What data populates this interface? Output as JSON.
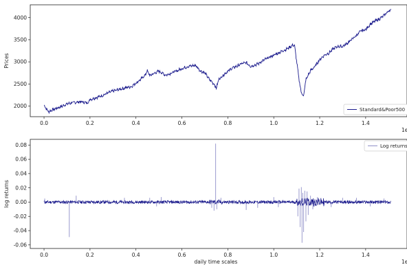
{
  "chart_data": [
    {
      "type": "line",
      "title": "",
      "xlabel": "",
      "ylabel": "Prices",
      "x_offset_label": "1e",
      "xlim": [
        -0.06,
        1.58
      ],
      "ylim": [
        1760,
        4290
      ],
      "xticks": [
        0.0,
        0.2,
        0.4,
        0.6,
        0.8,
        1.0,
        1.2,
        1.4
      ],
      "xtick_labels": [
        "0.0",
        "0.2",
        "0.4",
        "0.6",
        "0.8",
        "1.0",
        "1.2",
        "1.4"
      ],
      "yticks": [
        2000,
        2500,
        3000,
        3500,
        4000
      ],
      "ytick_labels": [
        "2000",
        "2500",
        "3000",
        "3500",
        "4000"
      ],
      "grid": false,
      "legend_position": "lower-right",
      "series": [
        {
          "name": "Standard&Poor500",
          "color": "#1a1a8c",
          "x": [
            0.0,
            0.01,
            0.02,
            0.03,
            0.05,
            0.08,
            0.1,
            0.13,
            0.16,
            0.19,
            0.2,
            0.22,
            0.25,
            0.28,
            0.3,
            0.33,
            0.36,
            0.38,
            0.4,
            0.42,
            0.44,
            0.45,
            0.46,
            0.48,
            0.5,
            0.53,
            0.55,
            0.58,
            0.6,
            0.63,
            0.66,
            0.68,
            0.7,
            0.72,
            0.74,
            0.75,
            0.76,
            0.78,
            0.8,
            0.82,
            0.84,
            0.86,
            0.88,
            0.9,
            0.93,
            0.96,
            0.98,
            1.0,
            1.02,
            1.04,
            1.06,
            1.08,
            1.09,
            1.1,
            1.11,
            1.12,
            1.13,
            1.14,
            1.16,
            1.18,
            1.2,
            1.22,
            1.24,
            1.26,
            1.28,
            1.3,
            1.32,
            1.34,
            1.36,
            1.38,
            1.4,
            1.42,
            1.44,
            1.46,
            1.48,
            1.5,
            1.51
          ],
          "values": [
            2020,
            1940,
            1870,
            1900,
            1940,
            2000,
            2050,
            2080,
            2100,
            2070,
            2150,
            2180,
            2230,
            2300,
            2340,
            2380,
            2420,
            2440,
            2520,
            2600,
            2700,
            2800,
            2690,
            2740,
            2790,
            2700,
            2740,
            2800,
            2850,
            2900,
            2920,
            2800,
            2750,
            2600,
            2500,
            2400,
            2600,
            2700,
            2790,
            2860,
            2900,
            2960,
            2980,
            2900,
            2950,
            3050,
            3100,
            3150,
            3200,
            3250,
            3300,
            3370,
            3380,
            3000,
            2600,
            2300,
            2230,
            2600,
            2800,
            2900,
            3050,
            3150,
            3200,
            3300,
            3350,
            3350,
            3420,
            3510,
            3600,
            3700,
            3730,
            3850,
            3920,
            3970,
            4050,
            4150,
            4180
          ]
        }
      ]
    },
    {
      "type": "line",
      "title": "",
      "xlabel": "daily time scales",
      "ylabel": "log returns",
      "x_offset_label": "1e",
      "xlim": [
        -0.06,
        1.58
      ],
      "ylim": [
        -0.065,
        0.088
      ],
      "xticks": [
        0.0,
        0.2,
        0.4,
        0.6,
        0.8,
        1.0,
        1.2,
        1.4
      ],
      "xtick_labels": [
        "0.0",
        "0.2",
        "0.4",
        "0.6",
        "0.8",
        "1.0",
        "1.2",
        "1.4"
      ],
      "yticks": [
        -0.06,
        -0.04,
        -0.02,
        0.0,
        0.02,
        0.04,
        0.06,
        0.08
      ],
      "ytick_labels": [
        "-0.06",
        "-0.04",
        "-0.02",
        "0.00",
        "0.02",
        "0.04",
        "0.06",
        "0.08"
      ],
      "grid": false,
      "legend_position": "upper-right",
      "series": [
        {
          "name": "Log returns",
          "color": "#1a1a8c",
          "spike_color": "#8f8fc8",
          "x_range": [
            0.0,
            1.51
          ],
          "baseline_amplitude": 0.0022,
          "spikes": [
            {
              "x": 0.003,
              "value": 0.005
            },
            {
              "x": 0.11,
              "value": -0.049
            },
            {
              "x": 0.14,
              "value": 0.009
            },
            {
              "x": 0.35,
              "value": 0.006
            },
            {
              "x": 0.46,
              "value": 0.006
            },
            {
              "x": 0.49,
              "value": -0.006
            },
            {
              "x": 0.51,
              "value": 0.007
            },
            {
              "x": 0.73,
              "value": -0.008
            },
            {
              "x": 0.74,
              "value": -0.012
            },
            {
              "x": 0.747,
              "value": 0.082
            },
            {
              "x": 0.752,
              "value": -0.01
            },
            {
              "x": 0.77,
              "value": 0.006
            },
            {
              "x": 0.88,
              "value": -0.011
            },
            {
              "x": 0.93,
              "value": -0.008
            },
            {
              "x": 1.0,
              "value": 0.007
            },
            {
              "x": 1.02,
              "value": -0.007
            },
            {
              "x": 1.105,
              "value": -0.02
            },
            {
              "x": 1.11,
              "value": 0.019
            },
            {
              "x": 1.115,
              "value": -0.035
            },
            {
              "x": 1.12,
              "value": 0.021
            },
            {
              "x": 1.123,
              "value": -0.057
            },
            {
              "x": 1.126,
              "value": 0.013
            },
            {
              "x": 1.13,
              "value": -0.042
            },
            {
              "x": 1.135,
              "value": 0.016
            },
            {
              "x": 1.14,
              "value": -0.027
            },
            {
              "x": 1.145,
              "value": 0.015
            },
            {
              "x": 1.15,
              "value": -0.018
            },
            {
              "x": 1.16,
              "value": 0.009
            },
            {
              "x": 1.17,
              "value": -0.01
            },
            {
              "x": 1.19,
              "value": 0.007
            },
            {
              "x": 1.25,
              "value": -0.007
            },
            {
              "x": 1.3,
              "value": 0.006
            },
            {
              "x": 1.36,
              "value": 0.006
            },
            {
              "x": 1.42,
              "value": -0.006
            },
            {
              "x": 1.48,
              "value": 0.005
            }
          ]
        }
      ]
    }
  ]
}
